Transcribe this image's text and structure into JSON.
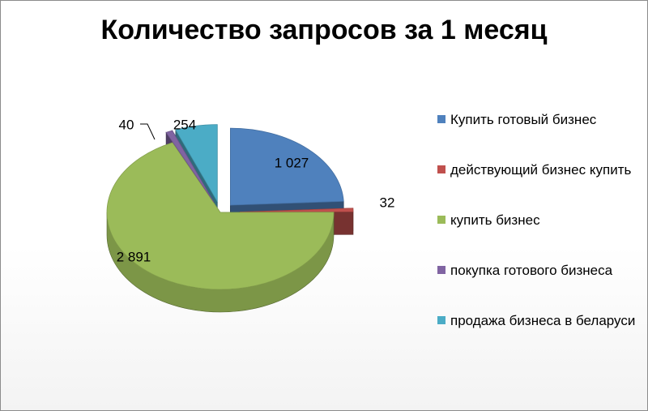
{
  "chart_data": {
    "type": "pie",
    "title": "Количество запросов за 1 месяц",
    "categories": [
      "Купить готовый бизнес",
      "действующий бизнес купить",
      "купить бизнес",
      "покупка готового бизнеса",
      "продажа бизнеса в беларуси"
    ],
    "values": [
      1027,
      32,
      2891,
      40,
      254
    ],
    "data_labels": [
      "1 027",
      "32",
      "2 891",
      "40",
      "254"
    ],
    "colors": [
      "#4f81bd",
      "#c0504d",
      "#9bbb59",
      "#8064a2",
      "#4bacc6"
    ],
    "legend_position": "right",
    "exploded": true,
    "style": "3d"
  }
}
